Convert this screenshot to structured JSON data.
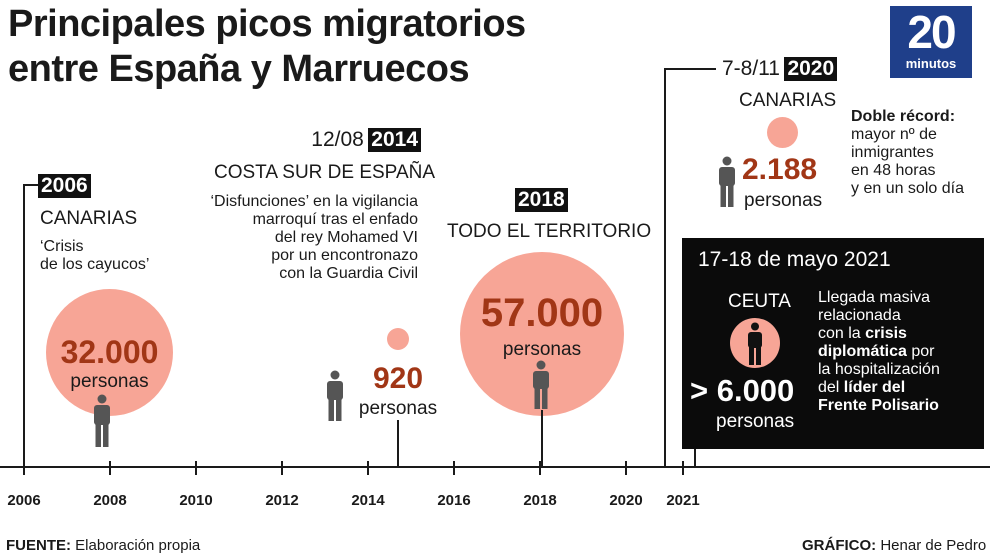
{
  "title": {
    "line1": "Principales picos migratorios",
    "line2": "entre España y Marruecos"
  },
  "logo": {
    "number": "20",
    "word": "minutos",
    "color": "#1f3f8a"
  },
  "colors": {
    "circle": "#f7a596",
    "number": "#a13616",
    "person": "#555555",
    "box": "#0b0b0b"
  },
  "events": {
    "e2006": {
      "year": "2006",
      "place": "CANARIAS",
      "desc_line1": "‘Crisis",
      "desc_line2": "de los cayucos’",
      "number": "32.000",
      "unit": "personas",
      "timeline_year": 2006.0
    },
    "e2014": {
      "date": "12/08",
      "year": "2014",
      "place": "COSTA SUR DE ESPAÑA",
      "desc_lines": [
        "‘Disfunciones’ en la vigilancia",
        "marroquí tras el enfado",
        "del rey Mohamed VI",
        "por un encontronazo",
        "con la Guardia Civil"
      ],
      "number": "920",
      "unit": "personas",
      "timeline_year": 2014.75
    },
    "e2018": {
      "year": "2018",
      "place": "TODO EL TERRITORIO",
      "number": "57.000",
      "unit": "personas",
      "timeline_year": 2018.0
    },
    "e2020": {
      "date": "7-8/11",
      "year": "2020",
      "place": "CANARIAS",
      "number": "2.188",
      "unit": "personas",
      "note_lines": [
        "Doble récord:",
        "mayor nº de",
        "inmigrantes",
        "en 48 horas",
        "y en un solo día"
      ],
      "timeline_year": 2020.85
    },
    "e2021": {
      "date": "17-18 de mayo 2021",
      "place": "CEUTA",
      "number": "> 6.000",
      "unit": "personas",
      "desc": {
        "l1": "Llegada masiva",
        "l2": "relacionada",
        "l3_pre": "con la ",
        "l3_bold": "crisis",
        "l4_bold": "diplomática",
        "l4_post": " por",
        "l5": "la hospitalización",
        "l6_pre": "del ",
        "l6_bold": "líder del",
        "l7_bold": "Frente Polisario"
      },
      "timeline_year": 2021.38
    }
  },
  "timeline": {
    "ticks": [
      "2006",
      "2008",
      "2010",
      "2012",
      "2014",
      "2016",
      "2018",
      "2020",
      "2021"
    ]
  },
  "footer": {
    "source_label": "FUENTE:",
    "source_value": " Elaboración propia",
    "graphic_label": "GRÁFICO:",
    "graphic_value": " Henar de Pedro"
  }
}
